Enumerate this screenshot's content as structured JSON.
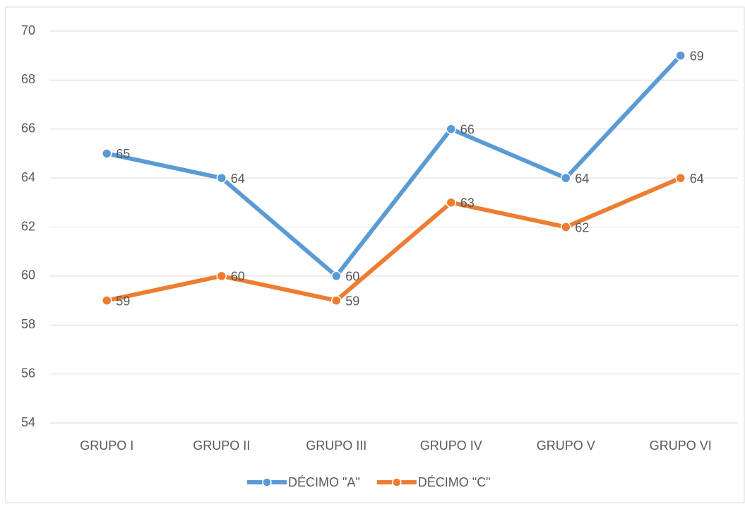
{
  "chart_data": {
    "type": "line",
    "categories": [
      "GRUPO I",
      "GRUPO II",
      "GRUPO III",
      "GRUPO IV",
      "GRUPO V",
      "GRUPO VI"
    ],
    "series": [
      {
        "name": "DÉCIMO \"A\"",
        "color": "#5b9bd5",
        "values": [
          65,
          64,
          60,
          66,
          64,
          69
        ]
      },
      {
        "name": "DÉCIMO \"C\"",
        "color": "#ed7d31",
        "values": [
          59,
          60,
          59,
          63,
          62,
          64
        ]
      }
    ],
    "ylim": [
      54,
      70
    ],
    "yticks": [
      54,
      56,
      58,
      60,
      62,
      64,
      66,
      68,
      70
    ],
    "grid": true,
    "legend": "bottom"
  }
}
